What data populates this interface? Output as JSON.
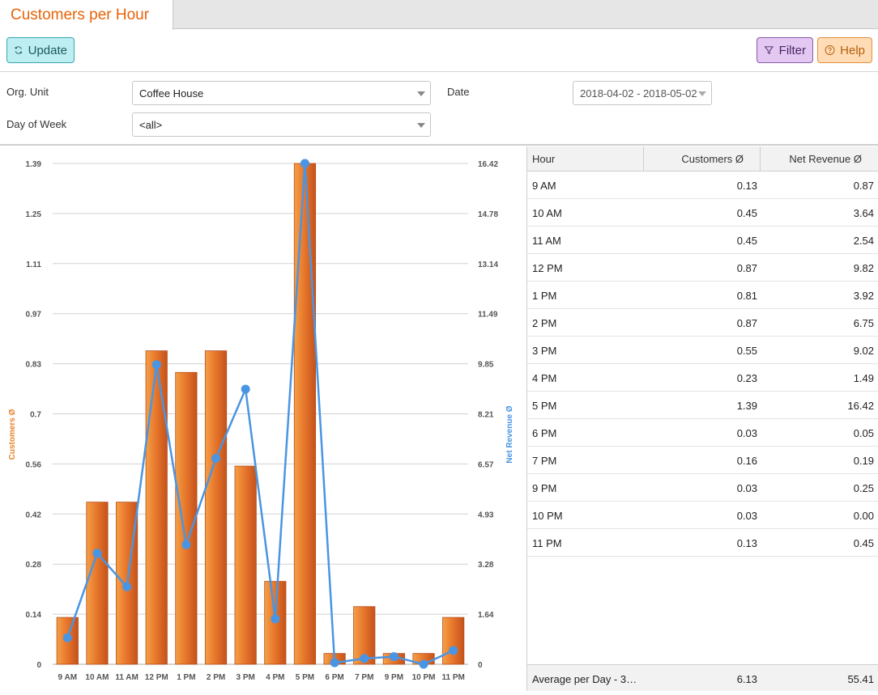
{
  "tab": {
    "title": "Customers per Hour"
  },
  "toolbar": {
    "update_label": "Update",
    "filter_label": "Filter",
    "help_label": "Help"
  },
  "form": {
    "org_unit_label": "Org. Unit",
    "org_unit_value": "Coffee House",
    "date_label": "Date",
    "date_value": "2018-04-02 - 2018-05-02",
    "dow_label": "Day of Week",
    "dow_value": "<all>"
  },
  "colors": {
    "bar": "#e8762a",
    "line": "#4a95e3",
    "left_axis_label": "#e8832a",
    "right_axis_label": "#4a95e3"
  },
  "chart_data": {
    "type": "bar",
    "categories": [
      "9 AM",
      "10 AM",
      "11 AM",
      "12 PM",
      "1 PM",
      "2 PM",
      "3 PM",
      "4 PM",
      "5 PM",
      "6 PM",
      "7 PM",
      "9 PM",
      "10 PM",
      "11 PM"
    ],
    "series": [
      {
        "name": "Customers Ø",
        "type": "bar",
        "axis": "left",
        "values": [
          0.13,
          0.45,
          0.45,
          0.87,
          0.81,
          0.87,
          0.55,
          0.23,
          1.39,
          0.03,
          0.16,
          0.03,
          0.03,
          0.13
        ]
      },
      {
        "name": "Net Revenue Ø",
        "type": "line",
        "axis": "right",
        "values": [
          0.87,
          3.64,
          2.54,
          9.82,
          3.92,
          6.75,
          9.02,
          1.49,
          16.42,
          0.05,
          0.19,
          0.25,
          0.0,
          0.45
        ]
      }
    ],
    "ylabel_left": "Customers Ø",
    "ylabel_right": "Net Revenue Ø",
    "ylim_left": [
      0,
      1.39
    ],
    "ylim_right": [
      0,
      16.42
    ],
    "yticks_left": [
      "0",
      "0.14",
      "0.28",
      "0.42",
      "0.56",
      "0.7",
      "0.83",
      "0.97",
      "1.11",
      "1.25",
      "1.39"
    ],
    "yticks_right": [
      "0",
      "1.64",
      "3.28",
      "4.93",
      "6.57",
      "8.21",
      "9.85",
      "11.49",
      "13.14",
      "14.78",
      "16.42"
    ],
    "grid": true
  },
  "table": {
    "headers": [
      "Hour",
      "Customers Ø",
      "Net Revenue Ø"
    ],
    "rows": [
      [
        "9 AM",
        "0.13",
        "0.87"
      ],
      [
        "10 AM",
        "0.45",
        "3.64"
      ],
      [
        "11 AM",
        "0.45",
        "2.54"
      ],
      [
        "12 PM",
        "0.87",
        "9.82"
      ],
      [
        "1 PM",
        "0.81",
        "3.92"
      ],
      [
        "2 PM",
        "0.87",
        "6.75"
      ],
      [
        "3 PM",
        "0.55",
        "9.02"
      ],
      [
        "4 PM",
        "0.23",
        "1.49"
      ],
      [
        "5 PM",
        "1.39",
        "16.42"
      ],
      [
        "6 PM",
        "0.03",
        "0.05"
      ],
      [
        "7 PM",
        "0.16",
        "0.19"
      ],
      [
        "9 PM",
        "0.03",
        "0.25"
      ],
      [
        "10 PM",
        "0.03",
        "0.00"
      ],
      [
        "11 PM",
        "0.13",
        "0.45"
      ]
    ],
    "footer": [
      "Average per Day - 3…",
      "6.13",
      "55.41"
    ]
  }
}
